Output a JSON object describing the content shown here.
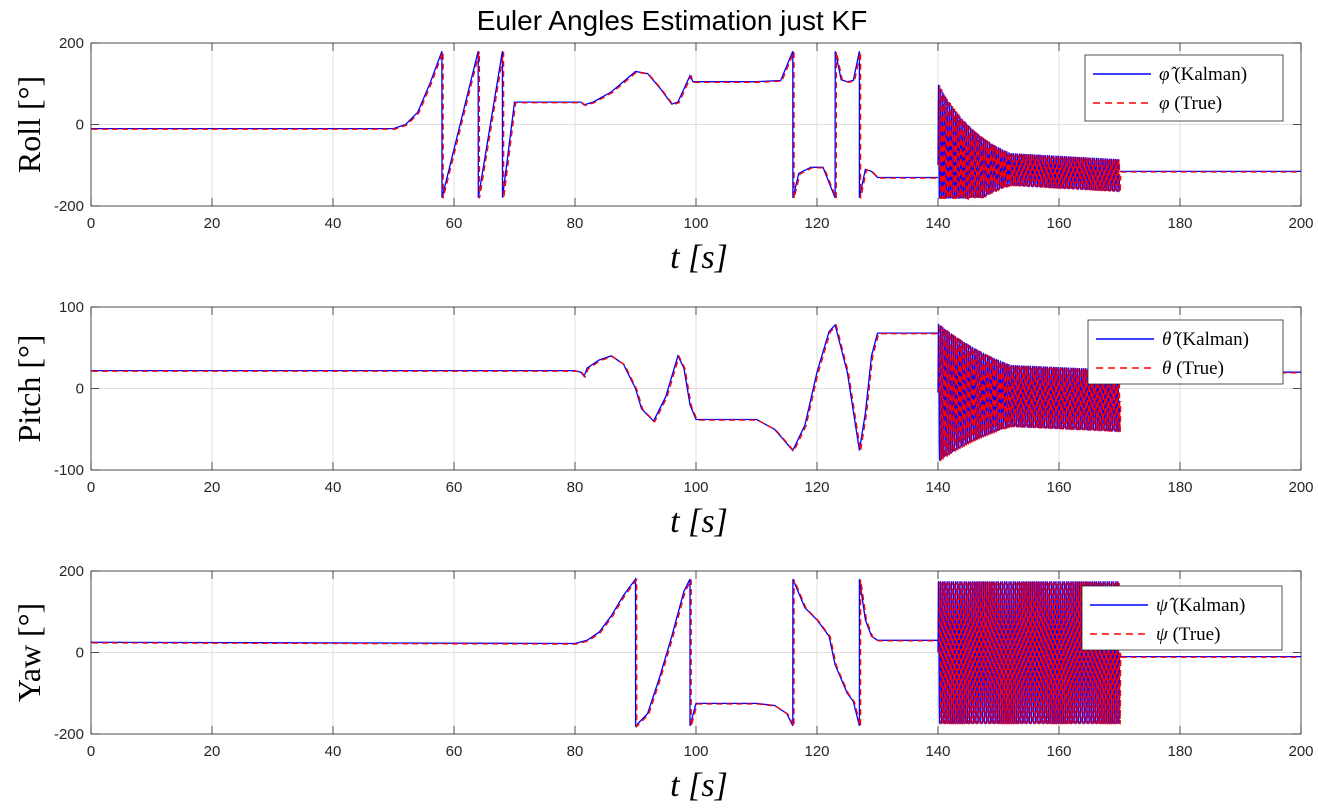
{
  "chart_data": {
    "type": "line",
    "title": "Euler Angles Estimation just KF",
    "subplots": [
      {
        "id": "roll",
        "ylabel": "Roll [°]",
        "xlabel": "t [s]",
        "xlim": [
          0,
          200
        ],
        "ylim": [
          -200,
          200
        ],
        "xticks": [
          0,
          20,
          40,
          60,
          80,
          100,
          120,
          140,
          160,
          180,
          200
        ],
        "yticks": [
          -200,
          0,
          200
        ],
        "grid": true,
        "legend_position": "top-right",
        "legend": [
          {
            "symbol": "φ̂",
            "text": "(Kalman)",
            "color": "#0000ff",
            "style": "solid"
          },
          {
            "symbol": "φ",
            "text": "(True)",
            "color": "#ff0000",
            "style": "dashed"
          }
        ],
        "series": [
          {
            "points": [
              [
                0,
                -10
              ],
              [
                50,
                -10
              ],
              [
                52,
                0
              ],
              [
                54,
                30
              ],
              [
                56,
                100
              ],
              [
                58,
                180
              ],
              [
                58.01,
                -180
              ],
              [
                64,
                180
              ],
              [
                64.01,
                -180
              ],
              [
                68,
                180
              ],
              [
                68.01,
                -180
              ],
              [
                70,
                55
              ],
              [
                81,
                55
              ],
              [
                81.5,
                48
              ],
              [
                83,
                55
              ],
              [
                86,
                80
              ],
              [
                90,
                130
              ],
              [
                92,
                125
              ],
              [
                94,
                90
              ],
              [
                96,
                50
              ],
              [
                97,
                55
              ],
              [
                99,
                120
              ],
              [
                99.5,
                105
              ],
              [
                110,
                105
              ],
              [
                114,
                108
              ],
              [
                116,
                180
              ],
              [
                116.01,
                -180
              ],
              [
                117,
                -120
              ],
              [
                119,
                -105
              ],
              [
                121,
                -105
              ],
              [
                123,
                -180
              ],
              [
                123.01,
                180
              ],
              [
                124,
                110
              ],
              [
                125,
                105
              ],
              [
                126,
                108
              ],
              [
                127,
                180
              ],
              [
                127.01,
                -180
              ],
              [
                128,
                -110
              ],
              [
                129,
                -115
              ],
              [
                130,
                -130
              ],
              [
                140,
                -130
              ]
            ]
          },
          {
            "type": "oscillation",
            "t_start": 140,
            "t_end": 170,
            "center_start": -100,
            "center_end": -125,
            "amp_start": 200,
            "amp_end": 40,
            "periods": 85,
            "clip": 180
          },
          {
            "points": [
              [
                170,
                -115
              ],
              [
                200,
                -115
              ]
            ]
          }
        ]
      },
      {
        "id": "pitch",
        "ylabel": "Pitch [°]",
        "xlabel": "t [s]",
        "xlim": [
          0,
          200
        ],
        "ylim": [
          -100,
          100
        ],
        "xticks": [
          0,
          20,
          40,
          60,
          80,
          100,
          120,
          140,
          160,
          180,
          200
        ],
        "yticks": [
          -100,
          0,
          100
        ],
        "grid": true,
        "legend_position": "top-right",
        "legend": [
          {
            "symbol": "θ̂",
            "text": "(Kalman)",
            "color": "#0000ff",
            "style": "solid"
          },
          {
            "symbol": "θ",
            "text": "(True)",
            "color": "#ff0000",
            "style": "dashed"
          }
        ],
        "series": [
          {
            "points": [
              [
                0,
                22
              ],
              [
                80,
                22
              ],
              [
                81,
                20
              ],
              [
                81.5,
                15
              ],
              [
                82,
                25
              ],
              [
                84,
                35
              ],
              [
                86,
                40
              ],
              [
                88,
                30
              ],
              [
                90,
                0
              ],
              [
                91,
                -25
              ],
              [
                93,
                -40
              ],
              [
                95,
                -10
              ],
              [
                97,
                40
              ],
              [
                98,
                25
              ],
              [
                99,
                -20
              ],
              [
                100,
                -38
              ],
              [
                110,
                -38
              ],
              [
                113,
                -50
              ],
              [
                116,
                -76
              ],
              [
                118,
                -45
              ],
              [
                120,
                20
              ],
              [
                122,
                70
              ],
              [
                123,
                78
              ],
              [
                125,
                20
              ],
              [
                127,
                -76
              ],
              [
                128,
                -30
              ],
              [
                129,
                40
              ],
              [
                130,
                68
              ],
              [
                140,
                68
              ]
            ]
          },
          {
            "type": "oscillation",
            "t_start": 140,
            "t_end": 170,
            "center_start": -5,
            "center_end": -15,
            "amp_start": 85,
            "amp_end": 38,
            "periods": 85,
            "clip": 100
          },
          {
            "points": [
              [
                170,
                20
              ],
              [
                200,
                20
              ]
            ]
          }
        ]
      },
      {
        "id": "yaw",
        "ylabel": "Yaw [°]",
        "xlabel": "t [s]",
        "xlim": [
          0,
          200
        ],
        "ylim": [
          -200,
          200
        ],
        "xticks": [
          0,
          20,
          40,
          60,
          80,
          100,
          120,
          140,
          160,
          180,
          200
        ],
        "yticks": [
          -200,
          0,
          200
        ],
        "grid": true,
        "legend_position": "top-right",
        "legend": [
          {
            "symbol": "ψ̂",
            "text": "(Kalman)",
            "color": "#0000ff",
            "style": "solid"
          },
          {
            "symbol": "ψ",
            "text": "(True)",
            "color": "#ff0000",
            "style": "dashed"
          }
        ],
        "series": [
          {
            "points": [
              [
                0,
                25
              ],
              [
                80,
                22
              ],
              [
                82,
                30
              ],
              [
                84,
                50
              ],
              [
                86,
                90
              ],
              [
                88,
                140
              ],
              [
                90,
                180
              ],
              [
                90.01,
                -180
              ],
              [
                92,
                -150
              ],
              [
                94,
                -60
              ],
              [
                96,
                40
              ],
              [
                98,
                150
              ],
              [
                99,
                180
              ],
              [
                99.01,
                -180
              ],
              [
                100,
                -125
              ],
              [
                110,
                -125
              ],
              [
                113,
                -130
              ],
              [
                115,
                -150
              ],
              [
                116,
                -180
              ],
              [
                116.01,
                180
              ],
              [
                118,
                110
              ],
              [
                120,
                80
              ],
              [
                122,
                40
              ],
              [
                123,
                -30
              ],
              [
                125,
                -100
              ],
              [
                126,
                -120
              ],
              [
                127,
                -180
              ],
              [
                127.01,
                180
              ],
              [
                128,
                80
              ],
              [
                129,
                40
              ],
              [
                130,
                30
              ],
              [
                140,
                30
              ]
            ]
          },
          {
            "type": "oscillation",
            "t_start": 140,
            "t_end": 170,
            "center_start": 0,
            "center_end": 0,
            "amp_start": 175,
            "amp_end": 175,
            "periods": 85,
            "clip": 180
          },
          {
            "points": [
              [
                170,
                -10
              ],
              [
                200,
                -10
              ]
            ]
          }
        ]
      }
    ]
  }
}
